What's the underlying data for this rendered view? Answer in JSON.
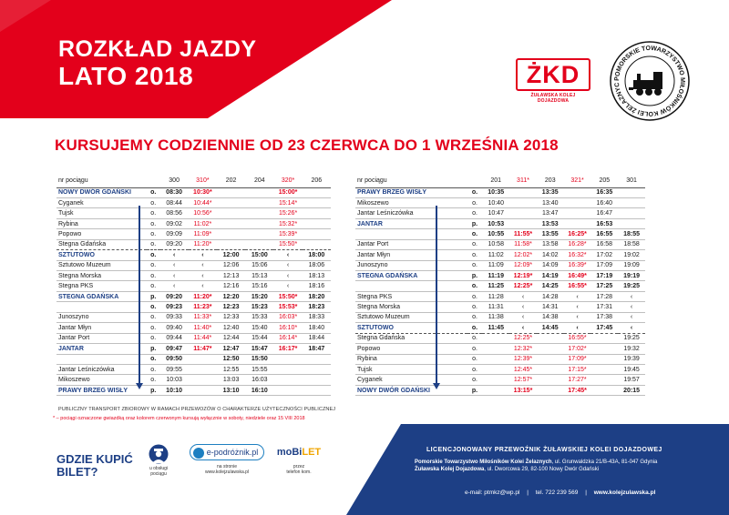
{
  "header": {
    "title_line1": "ROZKŁAD JAZDY",
    "title_line2": "LATO 2018",
    "colors": {
      "red": "#e3001b",
      "navy": "#1d3f85"
    }
  },
  "logos": {
    "zkd_text": "ŻKD",
    "zkd_sub": "ŻUŁAWSKA KOLEJ DOJAZDOWA",
    "society_ring": "POMORSKIE TOWARZYSTWO MIŁOŚNIKÓW KOLEI ŻELAZNYCH"
  },
  "subtitle": "KURSUJEMY CODZIENNIE OD 23 CZERWCA DO 1 WRZEŚNIA 2018",
  "left_table": {
    "header_label": "nr pociągu",
    "trains": [
      "300",
      "310*",
      "202",
      "204",
      "320*",
      "206"
    ],
    "train_red": [
      false,
      true,
      false,
      false,
      true,
      false
    ],
    "rows": [
      {
        "s": "NOWY DWÓR GDAŃSKI",
        "t": "o.",
        "v": [
          "08:30",
          "10:30*",
          "",
          "",
          "15:00*",
          ""
        ],
        "hl": true
      },
      {
        "s": "Cyganek",
        "t": "o.",
        "v": [
          "08:44",
          "10:44*",
          "",
          "",
          "15:14*",
          ""
        ]
      },
      {
        "s": "Tujsk",
        "t": "o.",
        "v": [
          "08:56",
          "10:56*",
          "",
          "",
          "15:26*",
          ""
        ]
      },
      {
        "s": "Rybina",
        "t": "o.",
        "v": [
          "09:02",
          "11:02*",
          "",
          "",
          "15:32*",
          ""
        ]
      },
      {
        "s": "Popowo",
        "t": "o.",
        "v": [
          "09:09",
          "11:09*",
          "",
          "",
          "15:39*",
          ""
        ]
      },
      {
        "s": "Stegna Gdańska",
        "t": "o.",
        "v": [
          "09:20",
          "11:20*",
          "",
          "",
          "15:50*",
          ""
        ],
        "sep": true
      },
      {
        "s": "SZTUTOWO",
        "t": "o.",
        "v": [
          "‹",
          "‹",
          "12:00",
          "15:00",
          "‹",
          "18:00"
        ],
        "hl": true
      },
      {
        "s": "Sztutowo Muzeum",
        "t": "o.",
        "v": [
          "‹",
          "‹",
          "12:06",
          "15:06",
          "‹",
          "18:06"
        ]
      },
      {
        "s": "Stegna Morska",
        "t": "o.",
        "v": [
          "‹",
          "‹",
          "12:13",
          "15:13",
          "‹",
          "18:13"
        ]
      },
      {
        "s": "Stegna PKS",
        "t": "o.",
        "v": [
          "‹",
          "‹",
          "12:16",
          "15:16",
          "‹",
          "18:16"
        ]
      },
      {
        "s": "STEGNA GDAŃSKA",
        "t": "p.",
        "v": [
          "09:20",
          "11:20*",
          "12:20",
          "15:20",
          "15:50*",
          "18:20"
        ],
        "hl": true
      },
      {
        "s": "",
        "t": "o.",
        "v": [
          "09:23",
          "11:23*",
          "12:23",
          "15:23",
          "15:53*",
          "18:23"
        ],
        "bold": true
      },
      {
        "s": "Junoszyno",
        "t": "o.",
        "v": [
          "09:33",
          "11:33*",
          "12:33",
          "15:33",
          "16:03*",
          "18:33"
        ]
      },
      {
        "s": "Jantar Młyn",
        "t": "o.",
        "v": [
          "09:40",
          "11:40*",
          "12:40",
          "15:40",
          "16:10*",
          "18:40"
        ]
      },
      {
        "s": "Jantar Port",
        "t": "o.",
        "v": [
          "09:44",
          "11:44*",
          "12:44",
          "15:44",
          "16:14*",
          "18:44"
        ]
      },
      {
        "s": "JANTAR",
        "t": "p.",
        "v": [
          "09:47",
          "11:47*",
          "12:47",
          "15:47",
          "16:17*",
          "18:47"
        ],
        "hl": true
      },
      {
        "s": "",
        "t": "o.",
        "v": [
          "09:50",
          "",
          "12:50",
          "15:50",
          "",
          ""
        ],
        "bold": true
      },
      {
        "s": "Jantar Leśniczówka",
        "t": "o.",
        "v": [
          "09:55",
          "",
          "12:55",
          "15:55",
          "",
          ""
        ]
      },
      {
        "s": "Mikoszewo",
        "t": "o.",
        "v": [
          "10:03",
          "",
          "13:03",
          "16:03",
          "",
          ""
        ]
      },
      {
        "s": "PRAWY BRZEG WISŁY",
        "t": "p.",
        "v": [
          "10:10",
          "",
          "13:10",
          "16:10",
          "",
          ""
        ],
        "hl": true
      }
    ]
  },
  "right_table": {
    "header_label": "nr pociągu",
    "trains": [
      "201",
      "311*",
      "203",
      "321*",
      "205",
      "301"
    ],
    "train_red": [
      false,
      true,
      false,
      true,
      false,
      false
    ],
    "rows": [
      {
        "s": "PRAWY BRZEG WISŁY",
        "t": "o.",
        "v": [
          "10:35",
          "",
          "13:35",
          "",
          "16:35",
          ""
        ],
        "hl": true
      },
      {
        "s": "Mikoszewo",
        "t": "o.",
        "v": [
          "10:40",
          "",
          "13:40",
          "",
          "16:40",
          ""
        ]
      },
      {
        "s": "Jantar Leśniczówka",
        "t": "o.",
        "v": [
          "10:47",
          "",
          "13:47",
          "",
          "16:47",
          ""
        ]
      },
      {
        "s": "JANTAR",
        "t": "p.",
        "v": [
          "10:53",
          "",
          "13:53",
          "",
          "16:53",
          ""
        ],
        "hl": true
      },
      {
        "s": "",
        "t": "o.",
        "v": [
          "10:55",
          "11:55*",
          "13:55",
          "16:25*",
          "16:55",
          "18:55"
        ],
        "bold": true
      },
      {
        "s": "Jantar Port",
        "t": "o.",
        "v": [
          "10:58",
          "11:58*",
          "13:58",
          "16:28*",
          "16:58",
          "18:58"
        ]
      },
      {
        "s": "Jantar Młyn",
        "t": "o.",
        "v": [
          "11:02",
          "12:02*",
          "14:02",
          "16:32*",
          "17:02",
          "19:02"
        ]
      },
      {
        "s": "Junoszyno",
        "t": "o.",
        "v": [
          "11:09",
          "12:09*",
          "14:09",
          "16:39*",
          "17:09",
          "19:09"
        ]
      },
      {
        "s": "STEGNA GDAŃSKA",
        "t": "p.",
        "v": [
          "11:19",
          "12:19*",
          "14:19",
          "16:49*",
          "17:19",
          "19:19"
        ],
        "hl": true
      },
      {
        "s": "",
        "t": "o.",
        "v": [
          "11:25",
          "12:25*",
          "14:25",
          "16:55*",
          "17:25",
          "19:25"
        ],
        "bold": true
      },
      {
        "s": "Stegna PKS",
        "t": "o.",
        "v": [
          "11:28",
          "‹",
          "14:28",
          "‹",
          "17:28",
          "‹"
        ]
      },
      {
        "s": "Stegna Morska",
        "t": "o.",
        "v": [
          "11:31",
          "‹",
          "14:31",
          "‹",
          "17:31",
          "‹"
        ]
      },
      {
        "s": "Sztutowo Muzeum",
        "t": "o.",
        "v": [
          "11:38",
          "‹",
          "14:38",
          "‹",
          "17:38",
          "‹"
        ]
      },
      {
        "s": "SZTUTOWO",
        "t": "o.",
        "v": [
          "11:45",
          "‹",
          "14:45",
          "‹",
          "17:45",
          "‹"
        ],
        "hl": true,
        "sep": true
      },
      {
        "s": "Stegna Gdańska",
        "t": "o.",
        "v": [
          "",
          "12:25*",
          "",
          "16:55*",
          "",
          "19:25"
        ]
      },
      {
        "s": "Popowo",
        "t": "o.",
        "v": [
          "",
          "12:32*",
          "",
          "17:02*",
          "",
          "19:32"
        ]
      },
      {
        "s": "Rybina",
        "t": "o.",
        "v": [
          "",
          "12:39*",
          "",
          "17:09*",
          "",
          "19:39"
        ]
      },
      {
        "s": "Tujsk",
        "t": "o.",
        "v": [
          "",
          "12:45*",
          "",
          "17:15*",
          "",
          "19:45"
        ]
      },
      {
        "s": "Cyganek",
        "t": "o.",
        "v": [
          "",
          "12:57*",
          "",
          "17:27*",
          "",
          "19:57"
        ]
      },
      {
        "s": "NOWY DWÓR GDAŃSKI",
        "t": "p.",
        "v": [
          "",
          "13:15*",
          "",
          "17:45*",
          "",
          "20:15"
        ],
        "hl": true
      }
    ]
  },
  "notes": {
    "line1": "PUBLICZNY TRANSPORT ZBIOROWY W RAMACH PRZEWOZÓW O CHARAKTERZE UŻYTECZNOŚCI PUBLICZNEJ",
    "line2": "* – pociągi oznaczone gwiazdką oraz kolorem czerwonym kursują wyłącznie w soboty, niedziele oraz 15 VIII 2018"
  },
  "footer": {
    "buy_line1": "GDZIE KUPIĆ",
    "buy_line2": "BILET?",
    "conductor_label1": "u obsługi",
    "conductor_label2": "pociągu",
    "eprz_brand": "e-podróżnik.pl",
    "eprz_caption1": "na stronie",
    "eprz_caption2": "www.kolejzulawska.pl",
    "mobilet_brand_a": "moBi",
    "mobilet_brand_b": "LET",
    "mobilet_caption1": "przez",
    "mobilet_caption2": "telefon kom.",
    "license": "LICENCJONOWANY PRZEWOŹNIK ŻUŁAWSKIEJ KOLEI DOJAZDOWEJ",
    "org1_bold": "Pomorskie Towarzystwo Miłośników Kolei Żelaznych",
    "org1_rest": ", ul. Grunwaldzka 21/B-43A, 81-047 Gdynia",
    "org2_bold": "Żuławska Kolej Dojazdowa",
    "org2_rest": ", ul. Dworcowa 29, 82-100 Nowy Dwór Gdański",
    "email": "e-mail: ptmkz@wp.pl",
    "phone": "tel. 722  239  569",
    "website": "www.kolejzulawska.pl"
  }
}
